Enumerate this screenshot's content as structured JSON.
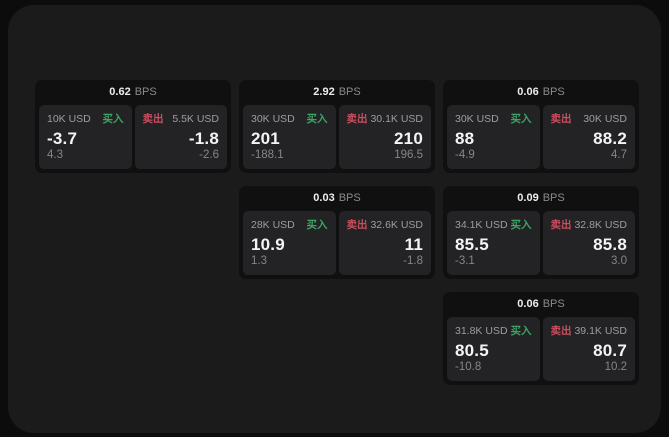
{
  "page": {
    "background": "#0c0c0c",
    "window_background": "#1b1b1c",
    "card_background": "#101011",
    "panel_background": "#232325",
    "buy_color": "#3fa265",
    "sell_color": "#c74f5f"
  },
  "labels": {
    "bps_unit": "BPS",
    "buy": "买入",
    "sell": "卖出"
  },
  "cards": [
    {
      "bps": "0.62",
      "buy": {
        "amount": "10K USD",
        "value": "-3.7",
        "delta": "4.3"
      },
      "sell": {
        "amount": "5.5K USD",
        "value": "-1.8",
        "delta": "-2.6"
      }
    },
    {
      "bps": "2.92",
      "buy": {
        "amount": "30K USD",
        "value": "201",
        "delta": "-188.1"
      },
      "sell": {
        "amount": "30.1K USD",
        "value": "210",
        "delta": "196.5"
      }
    },
    {
      "bps": "0.06",
      "buy": {
        "amount": "30K USD",
        "value": "88",
        "delta": "-4.9"
      },
      "sell": {
        "amount": "30K USD",
        "value": "88.2",
        "delta": "4.7"
      }
    },
    {
      "bps": "0.03",
      "buy": {
        "amount": "28K USD",
        "value": "10.9",
        "delta": "1.3"
      },
      "sell": {
        "amount": "32.6K USD",
        "value": "11",
        "delta": "-1.8"
      }
    },
    {
      "bps": "0.09",
      "buy": {
        "amount": "34.1K USD",
        "value": "85.5",
        "delta": "-3.1"
      },
      "sell": {
        "amount": "32.8K USD",
        "value": "85.8",
        "delta": "3.0"
      }
    },
    {
      "bps": "0.06",
      "buy": {
        "amount": "31.8K USD",
        "value": "80.5",
        "delta": "-10.8"
      },
      "sell": {
        "amount": "39.1K USD",
        "value": "80.7",
        "delta": "10.2"
      }
    }
  ]
}
